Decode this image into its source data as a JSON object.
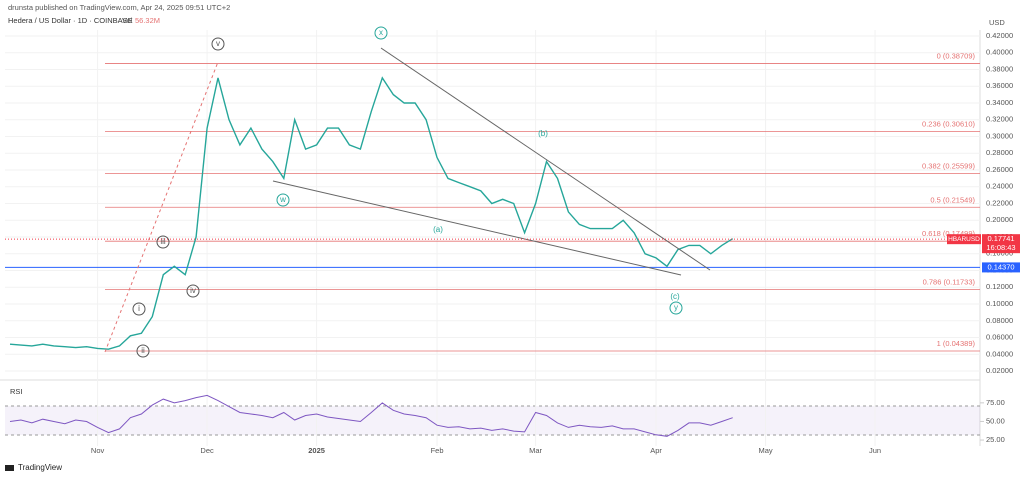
{
  "header": {
    "publisher": "drunsta published on TradingView.com, Apr 24, 2025 09:51 UTC+2",
    "symbol": "Hedera / US Dollar · 1D · COINBASE",
    "volume_label": "Vol",
    "volume": "56.32M",
    "brand": "TradingView"
  },
  "chart_data": {
    "type": "line",
    "currency": "USD",
    "color": "#26a69a",
    "categories": [
      null,
      null,
      null,
      null,
      null,
      null,
      null,
      null,
      "Nov",
      null,
      null,
      null,
      null,
      null,
      null,
      null,
      null,
      null,
      "Dec",
      null,
      null,
      null,
      null,
      null,
      null,
      null,
      null,
      null,
      "2025",
      null,
      null,
      null,
      null,
      null,
      null,
      null,
      null,
      null,
      null,
      "Feb",
      null,
      null,
      null,
      null,
      null,
      null,
      null,
      null,
      "Mar",
      null,
      null,
      null,
      null,
      null,
      null,
      null,
      null,
      null,
      null,
      "Apr",
      null,
      null,
      null,
      null,
      null,
      null,
      null,
      null,
      null,
      "May",
      null,
      null,
      null,
      null,
      null,
      null,
      null,
      null,
      null,
      "Jun",
      null,
      null,
      null,
      null,
      null,
      null,
      null,
      null,
      null
    ],
    "series": [
      {
        "name": "HBARUSD",
        "color": "#26a69a",
        "values": [
          0.052,
          0.051,
          0.05,
          0.052,
          0.05,
          0.049,
          0.048,
          0.049,
          0.047,
          0.046,
          0.05,
          0.062,
          0.065,
          0.085,
          0.135,
          0.145,
          0.135,
          0.18,
          0.31,
          0.37,
          0.32,
          0.29,
          0.31,
          0.285,
          0.27,
          0.25,
          0.32,
          0.285,
          0.29,
          0.31,
          0.31,
          0.29,
          0.285,
          0.33,
          0.37,
          0.35,
          0.34,
          0.34,
          0.32,
          0.275,
          0.25,
          0.245,
          0.24,
          0.235,
          0.22,
          0.225,
          0.22,
          0.185,
          0.22,
          0.27,
          0.25,
          0.21,
          0.195,
          0.19,
          0.19,
          0.19,
          0.2,
          0.185,
          0.16,
          0.155,
          0.145,
          0.165,
          0.17,
          0.17,
          0.16,
          0.17,
          0.178,
          null,
          null,
          null,
          null,
          null,
          null,
          null,
          null,
          null,
          null,
          null,
          null,
          null,
          null,
          null,
          null,
          null,
          null,
          null,
          null,
          null,
          null
        ]
      }
    ],
    "ylim": [
      0.01,
      0.43
    ],
    "yticks": [
      {
        "value": 0.42,
        "label": "0.42000"
      },
      {
        "value": 0.4,
        "label": "0.40000"
      },
      {
        "value": 0.38,
        "label": "0.38000"
      },
      {
        "value": 0.36,
        "label": "0.36000"
      },
      {
        "value": 0.34,
        "label": "0.34000"
      },
      {
        "value": 0.32,
        "label": "0.32000"
      },
      {
        "value": 0.3,
        "label": "0.30000"
      },
      {
        "value": 0.28,
        "label": "0.28000"
      },
      {
        "value": 0.26,
        "label": "0.26000"
      },
      {
        "value": 0.24,
        "label": "0.24000"
      },
      {
        "value": 0.22,
        "label": "0.22000"
      },
      {
        "value": 0.2,
        "label": "0.20000"
      },
      {
        "value": 0.18,
        "label": "0.18000"
      },
      {
        "value": 0.16,
        "label": "0.16000"
      },
      {
        "value": 0.14,
        "label": "0.14000"
      },
      {
        "value": 0.12,
        "label": "0.12000"
      },
      {
        "value": 0.1,
        "label": "0.10000"
      },
      {
        "value": 0.08,
        "label": "0.08000"
      },
      {
        "value": 0.06,
        "label": "0.06000"
      },
      {
        "value": 0.04,
        "label": "0.04000"
      },
      {
        "value": 0.02,
        "label": "0.02000"
      }
    ],
    "fib_levels": [
      {
        "value": 0.38709,
        "label": "0 (0.38709)"
      },
      {
        "value": 0.3061,
        "label": "0.236 (0.30610)"
      },
      {
        "value": 0.25599,
        "label": "0.382 (0.25599)"
      },
      {
        "value": 0.21549,
        "label": "0.5 (0.21549)"
      },
      {
        "value": 0.17499,
        "label": "0.618 (0.17499)"
      },
      {
        "value": 0.11733,
        "label": "0.786 (0.11733)"
      },
      {
        "value": 0.04389,
        "label": "1 (0.04389)"
      }
    ],
    "horizontal_line": {
      "value": 0.1437,
      "label": "0.14370",
      "color": "#2962ff"
    },
    "last_price": {
      "symbol": "HBARUSD",
      "value": 0.17741,
      "countdown": "16:08:43",
      "color": "#f23645"
    },
    "waves": [
      "v",
      "x",
      "w",
      "(a)",
      "(b)",
      "(c)",
      "y",
      "iii",
      "iv",
      "i",
      "ii"
    ],
    "rsi": {
      "title": "RSI",
      "color": "#7e57c2",
      "ylim": [
        17,
        99
      ],
      "yticks": [
        {
          "value": 75,
          "label": "75.00"
        },
        {
          "value": 50,
          "label": "50.00"
        },
        {
          "value": 25,
          "label": "25.00"
        }
      ],
      "values": [
        50,
        52,
        48,
        53,
        50,
        47,
        52,
        50,
        42,
        35,
        40,
        55,
        60,
        72,
        80,
        75,
        78,
        82,
        85,
        78,
        70,
        62,
        60,
        58,
        55,
        62,
        52,
        58,
        60,
        56,
        54,
        52,
        50,
        62,
        75,
        65,
        60,
        58,
        55,
        45,
        42,
        43,
        40,
        41,
        38,
        40,
        37,
        36,
        62,
        58,
        48,
        42,
        45,
        43,
        42,
        44,
        40,
        40,
        36,
        32,
        30,
        38,
        48,
        48,
        45,
        50,
        55,
        null,
        null,
        null,
        null,
        null,
        null,
        null,
        null,
        null,
        null,
        null,
        null,
        null,
        null,
        null,
        null,
        null,
        null,
        null,
        null,
        null,
        null
      ]
    }
  }
}
